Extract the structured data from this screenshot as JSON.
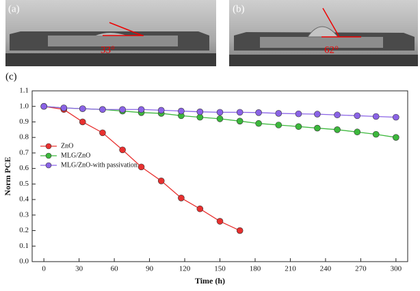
{
  "panels": [
    {
      "label": "(a)",
      "angle": "33°"
    },
    {
      "label": "(b)",
      "angle": "62°"
    }
  ],
  "chart_data": {
    "type": "line",
    "panel_label": "(c)",
    "x_label": "Time (h)",
    "y_label": "Norm PCE",
    "xlim": [
      -10,
      310
    ],
    "xticks": [
      0,
      30,
      60,
      90,
      120,
      150,
      180,
      210,
      240,
      270,
      300
    ],
    "ylim": [
      0,
      1.1
    ],
    "yticks": [
      {
        "value": 0,
        "label": "0.0"
      },
      0.1,
      0.2,
      0.3,
      0.4,
      0.5,
      0.6,
      0.7,
      0.8,
      0.9,
      {
        "value": 1,
        "label": "1.0"
      },
      1.1
    ],
    "legend": "upper-left",
    "series": [
      {
        "name": "ZnO",
        "color": "#e8302f",
        "x": [
          0,
          17,
          33,
          50,
          67,
          83,
          100,
          117,
          133,
          150,
          167
        ],
        "values": [
          1.0,
          0.98,
          0.9,
          0.83,
          0.72,
          0.61,
          0.52,
          0.41,
          0.34,
          0.26,
          0.2
        ]
      },
      {
        "name": "MLG/ZnO",
        "color": "#3cb83c",
        "x": [
          0,
          17,
          33,
          50,
          67,
          83,
          100,
          117,
          133,
          150,
          167,
          183,
          200,
          217,
          233,
          250,
          267,
          283,
          300
        ],
        "values": [
          1.0,
          0.99,
          0.985,
          0.98,
          0.97,
          0.96,
          0.955,
          0.94,
          0.93,
          0.92,
          0.905,
          0.89,
          0.88,
          0.87,
          0.86,
          0.85,
          0.835,
          0.82,
          0.8
        ]
      },
      {
        "name": "MLG/ZnO-with passivation",
        "color": "#8a63e6",
        "x": [
          0,
          17,
          33,
          50,
          67,
          83,
          100,
          117,
          133,
          150,
          167,
          183,
          200,
          217,
          233,
          250,
          267,
          283,
          300
        ],
        "values": [
          1.0,
          0.99,
          0.985,
          0.98,
          0.98,
          0.98,
          0.975,
          0.97,
          0.965,
          0.962,
          0.962,
          0.96,
          0.955,
          0.952,
          0.95,
          0.945,
          0.94,
          0.935,
          0.93
        ]
      }
    ]
  }
}
